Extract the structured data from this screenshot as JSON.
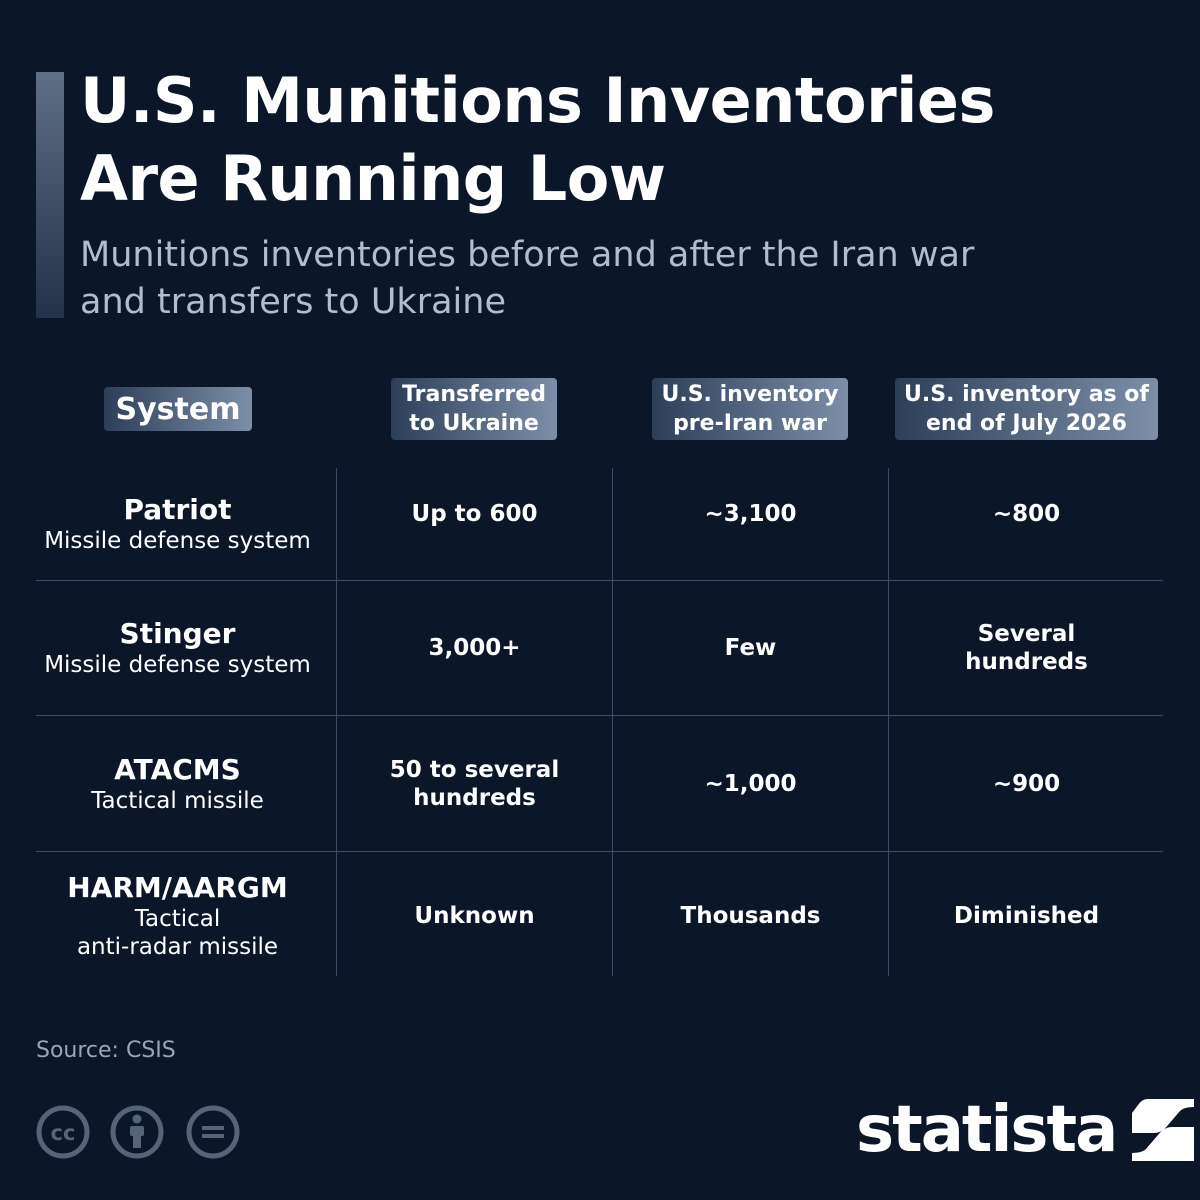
{
  "title_line1": "U.S. Munitions Inventories",
  "title_line2": "Are Running Low",
  "subtitle_line1": "Munitions inventories before and after the Iran war",
  "subtitle_line2": "and transfers to Ukraine",
  "source": "Source: CSIS",
  "logo_text": "statista",
  "chart_data": {
    "type": "table",
    "title": "U.S. Munitions Inventories Are Running Low",
    "subtitle": "Munitions inventories before and after the Iran war and transfers to Ukraine",
    "headers": {
      "system": "System",
      "transferred": [
        "Transferred",
        "to Ukraine"
      ],
      "pre_war": [
        "U.S. inventory",
        "pre-Iran war"
      ],
      "july": [
        "U.S. inventory as of",
        "end of July 2026"
      ]
    },
    "rows": [
      {
        "system": "Patriot",
        "description": [
          "Missile defense system"
        ],
        "transferred": [
          "Up to 600"
        ],
        "pre_war": [
          "~3,100"
        ],
        "july": [
          "~800"
        ]
      },
      {
        "system": "Stinger",
        "description": [
          "Missile defense system"
        ],
        "transferred": [
          "3,000+"
        ],
        "pre_war": [
          "Few"
        ],
        "july": [
          "Several",
          "hundreds"
        ]
      },
      {
        "system": "ATACMS",
        "description": [
          "Tactical missile"
        ],
        "transferred": [
          "50 to several",
          "hundreds"
        ],
        "pre_war": [
          "~1,000"
        ],
        "july": [
          "~900"
        ]
      },
      {
        "system": "HARM/AARGM",
        "description": [
          "Tactical",
          "anti-radar missile"
        ],
        "transferred": [
          "Unknown"
        ],
        "pre_war": [
          "Thousands"
        ],
        "july": [
          "Diminished"
        ]
      }
    ]
  },
  "icons": [
    "cc-icon",
    "attribution-icon",
    "no-derivatives-icon",
    "statista-logo-icon"
  ]
}
